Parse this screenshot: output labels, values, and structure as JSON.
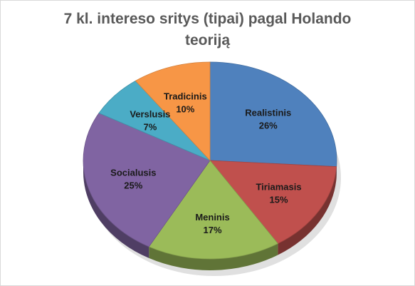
{
  "chart_data": {
    "type": "pie",
    "title": "7 kl. intereso sritys  (tipai) pagal Holando\nteoriją",
    "categories": [
      "Realistinis",
      "Tiriamasis",
      "Meninis",
      "Socialusis",
      "Verslusis",
      "Tradicinis"
    ],
    "values": [
      26,
      15,
      17,
      25,
      7,
      10
    ],
    "value_labels": [
      "26%",
      "15%",
      "17%",
      "25%",
      "7%",
      "10%"
    ],
    "colors": [
      "#4f81bd",
      "#c0504d",
      "#9bbb59",
      "#8064a2",
      "#4bacc6",
      "#f79646"
    ],
    "style": "3d",
    "legend": "none",
    "data_labels": "inside"
  }
}
